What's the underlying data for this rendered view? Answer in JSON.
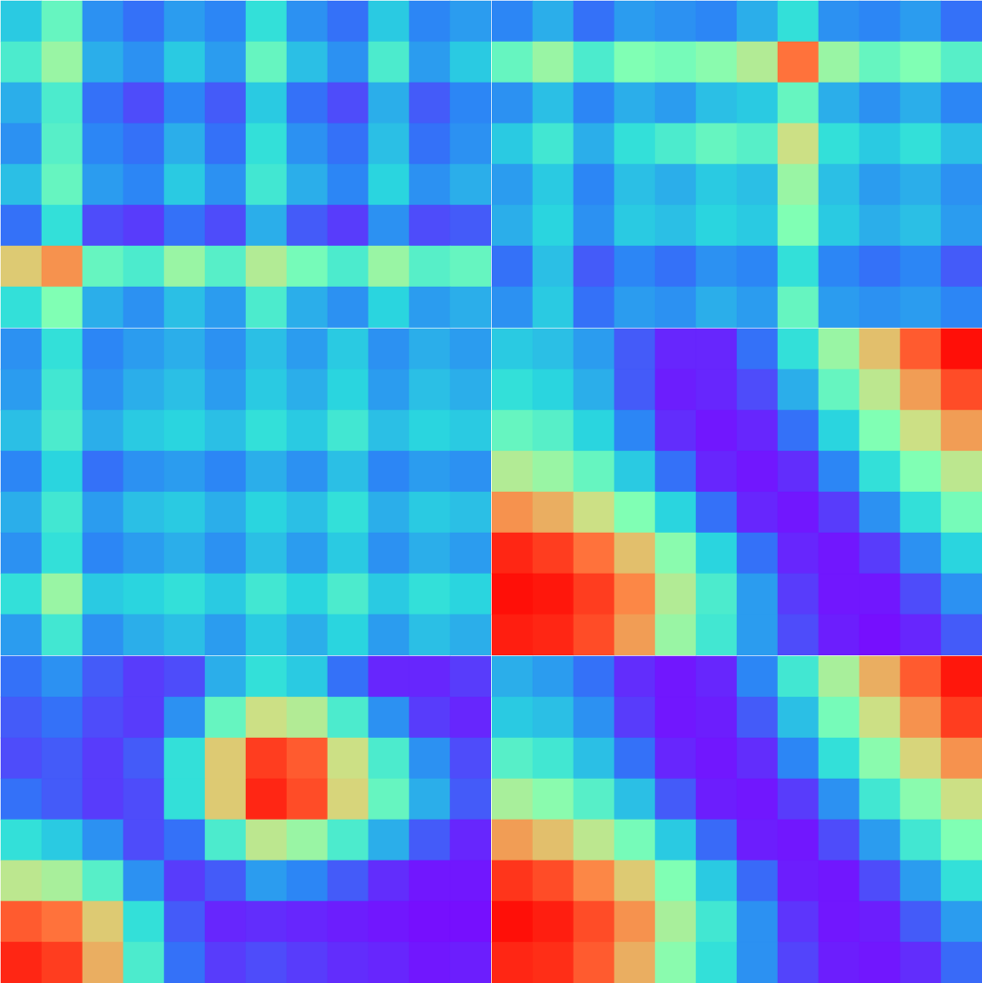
{
  "chart_data": [
    {
      "type": "heatmap",
      "tick_labels": false,
      "color": "rainbow",
      "zlim": [
        0,
        1
      ],
      "cells": [
        [
          0.3,
          0.45,
          0.2,
          0.15,
          0.22,
          0.18,
          0.35,
          0.2,
          0.15,
          0.3,
          0.18,
          0.22
        ],
        [
          0.4,
          0.55,
          0.25,
          0.2,
          0.3,
          0.22,
          0.45,
          0.28,
          0.2,
          0.4,
          0.22,
          0.3
        ],
        [
          0.25,
          0.4,
          0.15,
          0.1,
          0.18,
          0.12,
          0.3,
          0.15,
          0.1,
          0.25,
          0.12,
          0.18
        ],
        [
          0.2,
          0.42,
          0.18,
          0.15,
          0.25,
          0.15,
          0.35,
          0.2,
          0.15,
          0.28,
          0.15,
          0.2
        ],
        [
          0.28,
          0.45,
          0.22,
          0.18,
          0.3,
          0.2,
          0.38,
          0.25,
          0.18,
          0.32,
          0.2,
          0.25
        ],
        [
          0.15,
          0.35,
          0.1,
          0.08,
          0.15,
          0.1,
          0.25,
          0.12,
          0.08,
          0.2,
          0.1,
          0.12
        ],
        [
          0.7,
          0.8,
          0.45,
          0.4,
          0.55,
          0.42,
          0.6,
          0.48,
          0.4,
          0.55,
          0.42,
          0.45
        ],
        [
          0.35,
          0.5,
          0.25,
          0.2,
          0.28,
          0.22,
          0.4,
          0.25,
          0.2,
          0.32,
          0.22,
          0.25
        ]
      ]
    },
    {
      "type": "heatmap",
      "tick_labels": false,
      "color": "rainbow",
      "zlim": [
        0,
        1
      ],
      "cells": [
        [
          0.18,
          0.25,
          0.15,
          0.22,
          0.2,
          0.18,
          0.25,
          0.35,
          0.2,
          0.18,
          0.22,
          0.15
        ],
        [
          0.45,
          0.55,
          0.4,
          0.5,
          0.48,
          0.52,
          0.6,
          0.85,
          0.55,
          0.45,
          0.5,
          0.42
        ],
        [
          0.2,
          0.28,
          0.18,
          0.25,
          0.22,
          0.28,
          0.3,
          0.45,
          0.25,
          0.2,
          0.25,
          0.18
        ],
        [
          0.3,
          0.38,
          0.25,
          0.35,
          0.4,
          0.45,
          0.42,
          0.65,
          0.35,
          0.3,
          0.35,
          0.28
        ],
        [
          0.22,
          0.3,
          0.18,
          0.28,
          0.25,
          0.3,
          0.28,
          0.55,
          0.28,
          0.22,
          0.25,
          0.2
        ],
        [
          0.25,
          0.32,
          0.2,
          0.3,
          0.28,
          0.32,
          0.3,
          0.5,
          0.3,
          0.25,
          0.28,
          0.22
        ],
        [
          0.15,
          0.28,
          0.12,
          0.18,
          0.15,
          0.2,
          0.18,
          0.35,
          0.18,
          0.15,
          0.18,
          0.12
        ],
        [
          0.2,
          0.3,
          0.15,
          0.22,
          0.2,
          0.25,
          0.22,
          0.45,
          0.22,
          0.2,
          0.22,
          0.18
        ]
      ]
    },
    {
      "type": "heatmap",
      "tick_labels": false,
      "color": "rainbow",
      "zlim": [
        0,
        1
      ],
      "cells": [
        [
          0.2,
          0.35,
          0.18,
          0.22,
          0.25,
          0.2,
          0.28,
          0.22,
          0.3,
          0.2,
          0.25,
          0.22
        ],
        [
          0.22,
          0.38,
          0.2,
          0.25,
          0.28,
          0.22,
          0.3,
          0.25,
          0.32,
          0.22,
          0.28,
          0.25
        ],
        [
          0.28,
          0.4,
          0.25,
          0.3,
          0.32,
          0.28,
          0.35,
          0.3,
          0.38,
          0.28,
          0.32,
          0.3
        ],
        [
          0.18,
          0.32,
          0.15,
          0.2,
          0.22,
          0.18,
          0.25,
          0.2,
          0.28,
          0.18,
          0.22,
          0.2
        ],
        [
          0.25,
          0.38,
          0.22,
          0.28,
          0.3,
          0.25,
          0.32,
          0.28,
          0.35,
          0.25,
          0.3,
          0.28
        ],
        [
          0.2,
          0.35,
          0.18,
          0.22,
          0.25,
          0.2,
          0.28,
          0.22,
          0.3,
          0.2,
          0.25,
          0.22
        ],
        [
          0.35,
          0.55,
          0.3,
          0.32,
          0.35,
          0.3,
          0.38,
          0.32,
          0.4,
          0.3,
          0.35,
          0.32
        ],
        [
          0.22,
          0.38,
          0.2,
          0.25,
          0.28,
          0.22,
          0.3,
          0.25,
          0.32,
          0.22,
          0.28,
          0.25
        ]
      ]
    },
    {
      "type": "heatmap",
      "tick_labels": false,
      "color": "rainbow",
      "zlim": [
        0,
        1
      ],
      "cells": [
        [
          0.3,
          0.28,
          0.22,
          0.12,
          0.05,
          0.05,
          0.15,
          0.35,
          0.55,
          0.72,
          0.88,
          0.98
        ],
        [
          0.35,
          0.32,
          0.25,
          0.12,
          0.04,
          0.05,
          0.1,
          0.25,
          0.45,
          0.62,
          0.78,
          0.9
        ],
        [
          0.45,
          0.42,
          0.32,
          0.18,
          0.06,
          0.03,
          0.05,
          0.15,
          0.32,
          0.5,
          0.65,
          0.78
        ],
        [
          0.6,
          0.55,
          0.45,
          0.3,
          0.15,
          0.05,
          0.03,
          0.06,
          0.18,
          0.35,
          0.5,
          0.62
        ],
        [
          0.8,
          0.75,
          0.65,
          0.5,
          0.32,
          0.15,
          0.05,
          0.03,
          0.08,
          0.2,
          0.35,
          0.48
        ],
        [
          0.95,
          0.92,
          0.85,
          0.72,
          0.52,
          0.32,
          0.15,
          0.05,
          0.03,
          0.08,
          0.2,
          0.32
        ],
        [
          0.98,
          0.97,
          0.92,
          0.82,
          0.6,
          0.4,
          0.22,
          0.08,
          0.03,
          0.03,
          0.1,
          0.2
        ],
        [
          0.96,
          0.95,
          0.9,
          0.78,
          0.55,
          0.38,
          0.22,
          0.1,
          0.04,
          0.02,
          0.05,
          0.12
        ]
      ]
    },
    {
      "type": "heatmap",
      "tick_labels": false,
      "color": "rainbow",
      "zlim": [
        0,
        1
      ],
      "cells": [
        [
          0.15,
          0.2,
          0.12,
          0.08,
          0.1,
          0.25,
          0.35,
          0.3,
          0.15,
          0.05,
          0.05,
          0.08
        ],
        [
          0.12,
          0.15,
          0.1,
          0.08,
          0.2,
          0.45,
          0.65,
          0.6,
          0.4,
          0.2,
          0.08,
          0.05
        ],
        [
          0.1,
          0.12,
          0.08,
          0.12,
          0.35,
          0.7,
          0.92,
          0.88,
          0.65,
          0.4,
          0.2,
          0.1
        ],
        [
          0.15,
          0.12,
          0.08,
          0.1,
          0.35,
          0.7,
          0.95,
          0.9,
          0.68,
          0.45,
          0.25,
          0.12
        ],
        [
          0.35,
          0.3,
          0.2,
          0.1,
          0.15,
          0.4,
          0.62,
          0.55,
          0.4,
          0.25,
          0.12,
          0.05
        ],
        [
          0.62,
          0.58,
          0.42,
          0.2,
          0.08,
          0.12,
          0.22,
          0.18,
          0.12,
          0.06,
          0.03,
          0.03
        ],
        [
          0.88,
          0.85,
          0.7,
          0.35,
          0.12,
          0.05,
          0.06,
          0.05,
          0.04,
          0.03,
          0.02,
          0.02
        ],
        [
          0.95,
          0.92,
          0.75,
          0.4,
          0.15,
          0.08,
          0.1,
          0.08,
          0.06,
          0.05,
          0.03,
          0.04
        ]
      ]
    },
    {
      "type": "heatmap",
      "tick_labels": false,
      "color": "rainbow",
      "zlim": [
        0,
        1
      ],
      "cells": [
        [
          0.25,
          0.22,
          0.15,
          0.06,
          0.03,
          0.05,
          0.18,
          0.38,
          0.58,
          0.75,
          0.88,
          0.97
        ],
        [
          0.3,
          0.28,
          0.2,
          0.08,
          0.03,
          0.04,
          0.12,
          0.28,
          0.48,
          0.65,
          0.8,
          0.92
        ],
        [
          0.42,
          0.38,
          0.28,
          0.15,
          0.05,
          0.03,
          0.06,
          0.18,
          0.35,
          0.52,
          0.68,
          0.8
        ],
        [
          0.58,
          0.52,
          0.42,
          0.28,
          0.12,
          0.04,
          0.03,
          0.08,
          0.2,
          0.38,
          0.52,
          0.65
        ],
        [
          0.78,
          0.72,
          0.62,
          0.48,
          0.3,
          0.14,
          0.04,
          0.03,
          0.1,
          0.22,
          0.38,
          0.5
        ],
        [
          0.93,
          0.9,
          0.82,
          0.7,
          0.5,
          0.3,
          0.14,
          0.04,
          0.03,
          0.1,
          0.22,
          0.35
        ],
        [
          0.98,
          0.96,
          0.9,
          0.8,
          0.58,
          0.38,
          0.2,
          0.07,
          0.03,
          0.04,
          0.12,
          0.22
        ],
        [
          0.95,
          0.94,
          0.88,
          0.75,
          0.52,
          0.35,
          0.2,
          0.09,
          0.04,
          0.03,
          0.06,
          0.14
        ]
      ]
    }
  ]
}
